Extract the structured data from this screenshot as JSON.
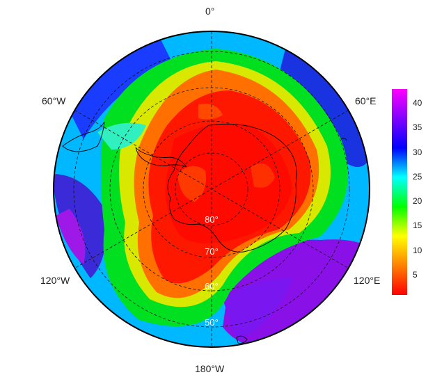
{
  "map": {
    "longitude_labels": {
      "top": "0°",
      "upper_left": "60°W",
      "upper_right": "60°E",
      "lower_left": "120°W",
      "lower_right": "120°E",
      "bottom": "180°W"
    },
    "latitude_labels": [
      "80°",
      "70°",
      "60°",
      "50°"
    ],
    "projection": "south-polar-stereographic",
    "graticule": "dashed"
  },
  "colorbar": {
    "ticks": [
      "5",
      "10",
      "15",
      "20",
      "25",
      "30",
      "35",
      "40"
    ],
    "range": [
      1,
      43
    ],
    "colors": [
      "#ff0000",
      "#ff8000",
      "#ffff00",
      "#00ff00",
      "#00ffff",
      "#0000ff",
      "#8000ff",
      "#ff00ff"
    ]
  }
}
